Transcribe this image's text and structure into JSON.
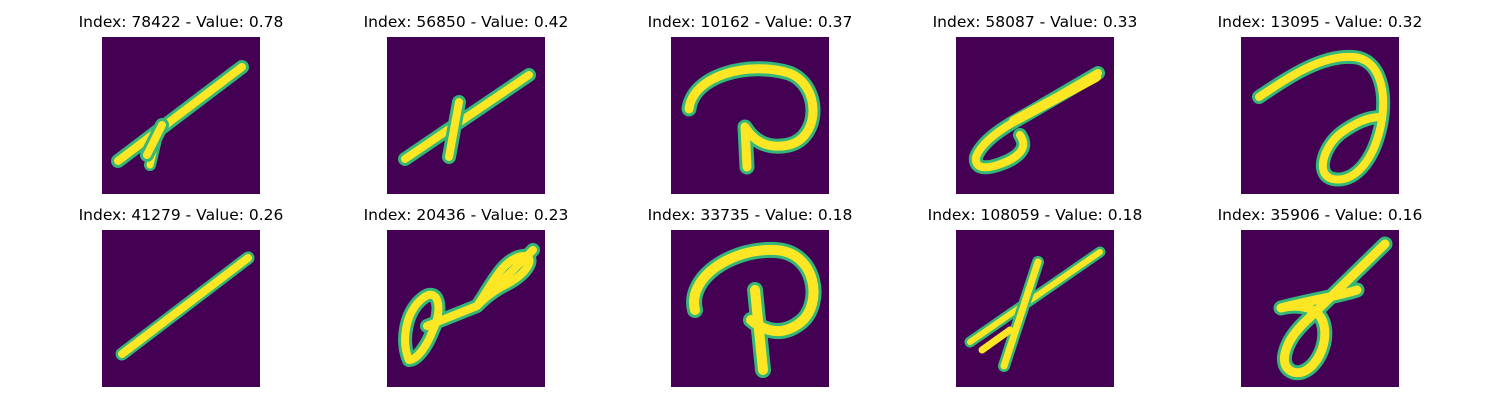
{
  "figure": {
    "panels": [
      {
        "title": "Index: 78422 - Value: 0.78",
        "index": 78422,
        "value": 0.78,
        "glyph": "slash-cross"
      },
      {
        "title": "Index: 56850 - Value: 0.42",
        "index": 56850,
        "value": 0.42,
        "glyph": "slash-cross"
      },
      {
        "title": "Index: 10162 - Value: 0.37",
        "index": 10162,
        "value": 0.37,
        "glyph": "p-loop"
      },
      {
        "title": "Index: 58087 - Value: 0.33",
        "index": 58087,
        "value": 0.33,
        "glyph": "loop-slash"
      },
      {
        "title": "Index: 13095 - Value: 0.32",
        "index": 13095,
        "value": 0.32,
        "glyph": "d-loop"
      },
      {
        "title": "Index: 41279 - Value: 0.26",
        "index": 41279,
        "value": 0.26,
        "glyph": "slash"
      },
      {
        "title": "Index: 20436 - Value: 0.23",
        "index": 20436,
        "value": 0.23,
        "glyph": "double-loop"
      },
      {
        "title": "Index: 33735 - Value: 0.18",
        "index": 33735,
        "value": 0.18,
        "glyph": "p-loop"
      },
      {
        "title": "Index: 108059 - Value: 0.18",
        "index": 108059,
        "value": 0.18,
        "glyph": "slash-cross"
      },
      {
        "title": "Index: 35906 - Value: 0.16",
        "index": 35906,
        "value": 0.16,
        "glyph": "d-loop"
      }
    ],
    "colors": {
      "background": "#440154",
      "stroke": "#fde725",
      "edge": "#35b779"
    }
  }
}
